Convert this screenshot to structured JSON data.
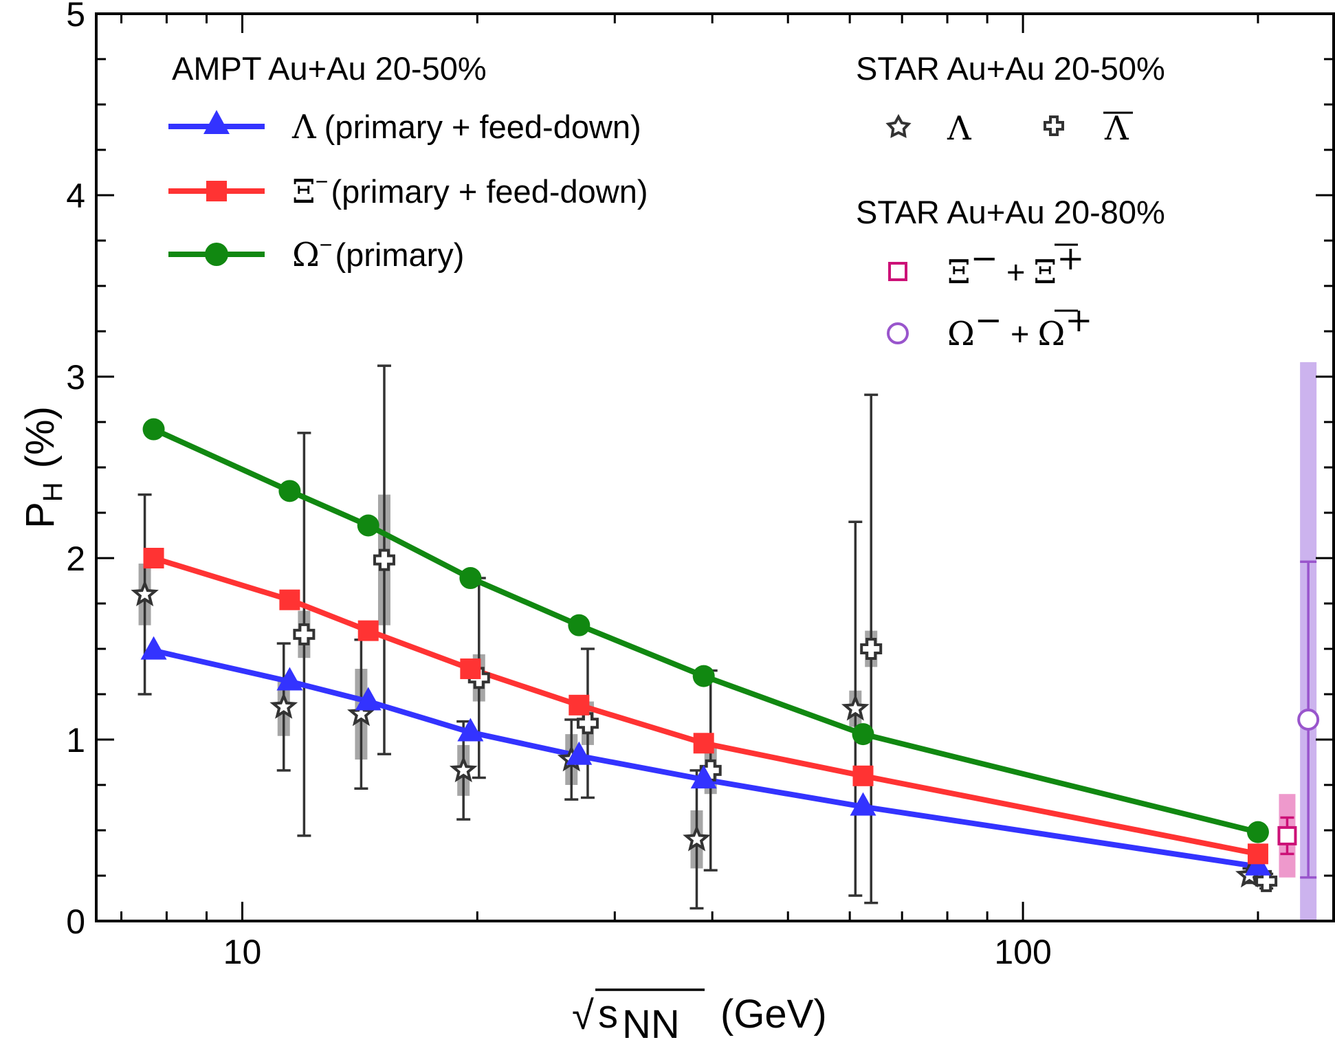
{
  "chart_data": {
    "type": "line",
    "xscale": "log",
    "xlim": [
      6.5,
      250
    ],
    "ylim": [
      0,
      5
    ],
    "xticks": [
      {
        "value": 10,
        "label": "10"
      },
      {
        "value": 100,
        "label": "100"
      }
    ],
    "yticks": [
      {
        "value": 0,
        "label": "0"
      },
      {
        "value": 1,
        "label": "1"
      },
      {
        "value": 2,
        "label": "2"
      },
      {
        "value": 3,
        "label": "3"
      },
      {
        "value": 4,
        "label": "4"
      },
      {
        "value": 5,
        "label": "5"
      }
    ],
    "xlabel": {
      "radical": "√",
      "main": "s",
      "sub": "NN",
      "unit": "(GeV)"
    },
    "ylabel": {
      "main": "P",
      "sub": "H",
      "unit": "(%)"
    },
    "legend_left": {
      "title": "AMPT Au+Au 20-50%",
      "entries": [
        {
          "symbol": "Λ",
          "sup": "",
          "text": "(primary + feed-down)"
        },
        {
          "symbol": "Ξ",
          "sup": "−",
          "text": "(primary + feed-down)"
        },
        {
          "symbol": "Ω",
          "sup": "−",
          "text": "(primary)"
        }
      ]
    },
    "legend_right": {
      "title1": "STAR Au+Au 20-50%",
      "lambda": "Λ",
      "antilambda": "Λ",
      "title2": "STAR Au+Au 20-80%",
      "xi": {
        "a": "Ξ",
        "asup": "−",
        "plus": "+",
        "b": "Ξ",
        "bsup": "+"
      },
      "omega": {
        "a": "Ω",
        "asup": "−",
        "plus": "+",
        "b": "Ω",
        "bsup": "+"
      }
    },
    "series": [
      {
        "name": "Λ (primary + feed-down)",
        "color": "#3333ff",
        "marker": "triangle",
        "x": [
          7.7,
          11.5,
          14.5,
          19.6,
          27,
          39,
          62.4,
          200
        ],
        "y": [
          1.49,
          1.32,
          1.21,
          1.04,
          0.91,
          0.78,
          0.63,
          0.3
        ]
      },
      {
        "name": "Ξ− (primary + feed-down)",
        "color": "#ff3333",
        "marker": "square",
        "x": [
          7.7,
          11.5,
          14.5,
          19.6,
          27,
          39,
          62.4,
          200
        ],
        "y": [
          2.0,
          1.77,
          1.6,
          1.39,
          1.19,
          0.98,
          0.8,
          0.37
        ]
      },
      {
        "name": "Ω− (primary)",
        "color": "#118811",
        "marker": "circle",
        "x": [
          7.7,
          11.5,
          14.5,
          19.6,
          27,
          39,
          62.4,
          200
        ],
        "y": [
          2.71,
          2.37,
          2.18,
          1.89,
          1.63,
          1.35,
          1.03,
          0.49
        ]
      }
    ],
    "star_lambda": {
      "name": "STAR Λ",
      "marker": "star",
      "color": "#333333",
      "x": [
        7.5,
        11.3,
        14.2,
        19.2,
        26.4,
        38.2,
        61.0,
        195
      ],
      "y": [
        1.8,
        1.18,
        1.14,
        0.83,
        0.89,
        0.45,
        1.17,
        0.25
      ],
      "err": [
        0.55,
        0.35,
        0.41,
        0.27,
        0.22,
        0.38,
        1.03,
        0.04
      ],
      "sys": [
        0.17,
        0.16,
        0.25,
        0.14,
        0.14,
        0.16,
        0.1,
        0.03
      ]
    },
    "star_antilambda": {
      "name": "STAR anti-Λ",
      "marker": "cross",
      "color": "#333333",
      "x": [
        12.0,
        15.2,
        20.1,
        27.7,
        39.8,
        63.9,
        205
      ],
      "y": [
        1.58,
        1.99,
        1.34,
        1.09,
        0.83,
        1.5,
        0.22
      ],
      "err": [
        1.11,
        1.07,
        0.55,
        0.41,
        0.55,
        1.4,
        0.04
      ],
      "sys": [
        0.13,
        0.36,
        0.13,
        0.12,
        0.13,
        0.1,
        0.03
      ]
    },
    "star_xi": {
      "name": "STAR Ξ− + anti-Ξ+",
      "marker": "open-square",
      "color": "#cc1177",
      "x": [
        218
      ],
      "y": [
        0.47
      ],
      "err": [
        0.1
      ],
      "sys": [
        0.23
      ]
    },
    "star_omega": {
      "name": "STAR Ω− + anti-Ω+",
      "marker": "open-circle",
      "color": "#9955cc",
      "x": [
        232
      ],
      "y": [
        1.11
      ],
      "err": [
        0.87
      ],
      "sys": [
        1.97
      ]
    }
  }
}
